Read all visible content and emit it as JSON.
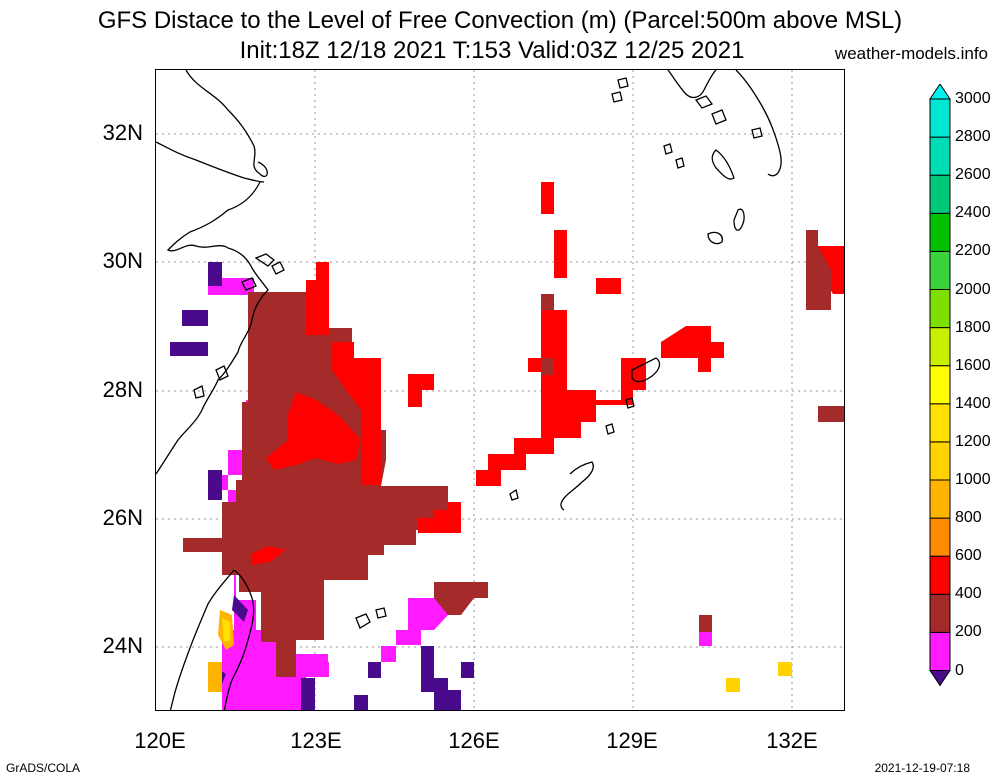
{
  "title_line1": "GFS Distace to the Level of Free Convection (m) (Parcel:500m above MSL)",
  "title_line2": "Init:18Z 12/18 2021 T:153 Valid:03Z 12/25 2021",
  "site": "weather-models.info",
  "footer_left": "GrADS/COLA",
  "footer_right": "2021-12-19-07:18",
  "map": {
    "lon_range": [
      120,
      133
    ],
    "lat_range": [
      23,
      33
    ],
    "lat_ticks": [
      {
        "v": 24,
        "label": "24N"
      },
      {
        "v": 26,
        "label": "26N"
      },
      {
        "v": 28,
        "label": "28N"
      },
      {
        "v": 30,
        "label": "30N"
      },
      {
        "v": 32,
        "label": "32N"
      }
    ],
    "lon_ticks": [
      {
        "v": 120,
        "label": "120E"
      },
      {
        "v": 123,
        "label": "123E"
      },
      {
        "v": 126,
        "label": "126E"
      },
      {
        "v": 129,
        "label": "129E"
      },
      {
        "v": 132,
        "label": "132E"
      }
    ]
  },
  "colorbar": {
    "levels": [
      "0",
      "200",
      "400",
      "600",
      "800",
      "1000",
      "1200",
      "1400",
      "1600",
      "1800",
      "2000",
      "2200",
      "2400",
      "2600",
      "2800",
      "3000"
    ],
    "colors": [
      "#4a0a8c",
      "#ff1aff",
      "#a52a2a",
      "#ff0000",
      "#ff8c00",
      "#ffb400",
      "#ffd200",
      "#ffe000",
      "#ffff00",
      "#c8f000",
      "#7ee000",
      "#3cd23c",
      "#00c000",
      "#00c878",
      "#00dcb4",
      "#00e6d2",
      "#00f0f0"
    ]
  }
}
